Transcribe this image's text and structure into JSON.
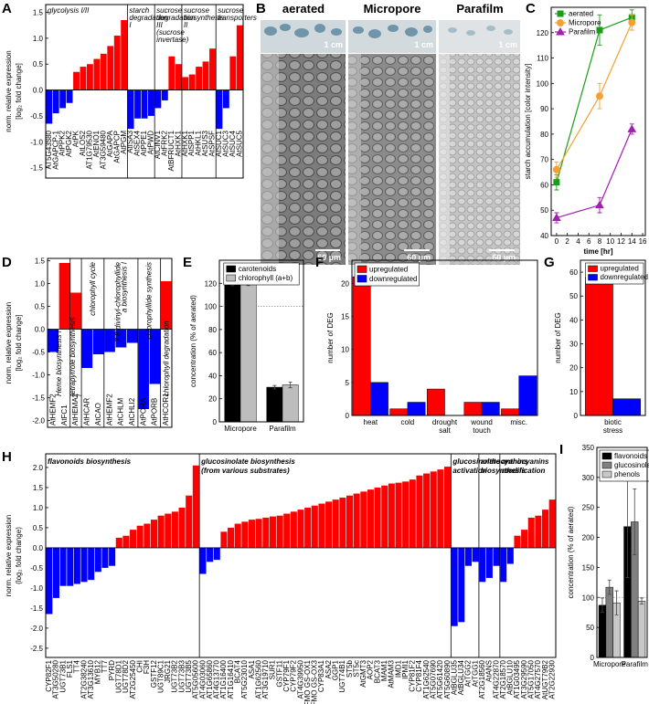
{
  "micrographs": {
    "panel": "B",
    "titles": [
      "aerated",
      "Micropore",
      "Parafilm"
    ],
    "scale_top": [
      "1 cm",
      "1 cm",
      "1 cm"
    ],
    "scale_bottom": [
      "60 µm",
      "60 µm",
      "60 µm"
    ]
  },
  "chart_data": [
    {
      "type": "bar",
      "panel": "A",
      "y_label": [
        "norm. relative expression",
        "[log₂ fold change]"
      ],
      "ylim": [
        -1.7,
        1.65
      ],
      "yticks": [
        -1.5,
        {
          "value": -1,
          "label": "-1.0"
        },
        -0.5,
        {
          "value": 0,
          "label": "0.0"
        },
        0.5,
        {
          "value": 1,
          "label": "1.0"
        },
        1.5
      ],
      "colors": {
        "up": "#ff0000",
        "down": "#0000ff"
      },
      "groups": [
        {
          "label": "glycolysis I/II",
          "categories": [
            "AT5G43380",
            "AtGAPCP-1",
            "AtPPK2",
            "AtPGK2",
            "AtPK",
            "AtLOS2",
            "AT1G79530",
            "AtENO1",
            "AT3G59480",
            "AtGAPA",
            "AtGAPCP",
            "AtPGM"
          ],
          "values": [
            -0.65,
            -0.45,
            -0.35,
            -0.25,
            0.35,
            0.45,
            0.5,
            0.6,
            0.7,
            0.85,
            1.05,
            1.35
          ]
        },
        {
          "label": "starch degradation I",
          "categories": [
            "AtISA3",
            "AtSEX4",
            "AtPPE1",
            "AtPWD"
          ],
          "values": [
            -0.75,
            -0.55,
            -0.55,
            -0.5
          ]
        },
        {
          "label": "sucrose degradation III",
          "sublabel": "(sucrose invertase)",
          "categories": [
            "AtCINV1",
            "AtFRK2",
            "AtBFRUCT1",
            "AtHXK1"
          ],
          "values": [
            -0.35,
            -0.2,
            0.65,
            0.5
          ]
        },
        {
          "label": "sucrose biosynthesis II",
          "categories": [
            "AtHXK1",
            "AtSPP1",
            "AtHKL1",
            "AtSUS3",
            "AtSPSF"
          ],
          "values": [
            0.25,
            0.3,
            0.45,
            0.55,
            0.8
          ]
        },
        {
          "label": "sucrose transporters",
          "categories": [
            "AtSUC1",
            "AtSUC3",
            "AtSUC4",
            "AtSUC5"
          ],
          "values": [
            -0.75,
            -0.35,
            0.65,
            1.25
          ]
        }
      ]
    },
    {
      "type": "line",
      "panel": "C",
      "x_label": "time [hr]",
      "y_label": "starch accumulation [color intensity]",
      "xlim": [
        -1,
        16.5
      ],
      "xticks": [
        0,
        2,
        4,
        6,
        8,
        10,
        12,
        14,
        16
      ],
      "ylim": [
        40,
        130
      ],
      "yticks": [
        40,
        50,
        60,
        70,
        80,
        90,
        100,
        110,
        120
      ],
      "x": [
        0,
        8,
        14
      ],
      "legend": "top-left",
      "series": [
        {
          "name": "aerated",
          "color": "#1a9e1a",
          "marker": "square",
          "values": [
            61,
            121,
            126
          ],
          "errors": [
            3,
            6,
            3
          ]
        },
        {
          "name": "Micropore",
          "color": "#f5a031",
          "marker": "circle",
          "values": [
            66,
            95,
            124
          ],
          "errors": [
            3,
            5,
            3
          ]
        },
        {
          "name": "Parafilm",
          "color": "#a020b0",
          "marker": "triangle",
          "values": [
            47,
            52,
            82
          ],
          "errors": [
            2,
            3,
            2
          ]
        }
      ]
    },
    {
      "type": "bar",
      "panel": "D",
      "y_label": [
        "norm. relative expression",
        "[log₂ fold change]"
      ],
      "ylim": [
        -2.15,
        1.55
      ],
      "yticks": [
        {
          "value": -2,
          "label": "-2.0"
        },
        -1.5,
        {
          "value": -1,
          "label": "-1.0"
        },
        -0.5,
        {
          "value": 0,
          "label": "0.0"
        },
        0.5,
        {
          "value": 1,
          "label": "1.0"
        },
        1.5
      ],
      "colors": {
        "up": "#ff0000",
        "down": "#0000ff"
      },
      "groups": [
        {
          "label": "Heme biosynthesis I",
          "categories": [
            "AtHEMF2",
            "AtFC1"
          ],
          "values": [
            -0.5,
            1.45
          ]
        },
        {
          "label": "tetrapyrrole biosynthesis I",
          "categories": [
            "AtHEMA2"
          ],
          "values": [
            0.8
          ]
        },
        {
          "label": "chlorophyll cycle",
          "categories": [
            "AtHCAR",
            "AtCAO"
          ],
          "values": [
            -0.85,
            -0.55
          ]
        },
        {
          "label": "3,8-divinyl-chlorophyllide a biosynthesis I",
          "categories": [
            "AtHEMF2",
            "AtCHLM",
            "AtCHLI2"
          ],
          "values": [
            -0.5,
            -0.4,
            -0.3
          ]
        },
        {
          "label": "chlorophyllide synthesis",
          "categories": [
            "AtPORA",
            "AtPORB"
          ],
          "values": [
            -1.75,
            -1.2
          ]
        },
        {
          "label": "chlorophyll degradation",
          "categories": [
            "AtHCOR1"
          ],
          "values": [
            1.05
          ]
        }
      ]
    },
    {
      "type": "bar",
      "panel": "E",
      "y_label": "concentration (% of aerated)",
      "categories": [
        "Micropore",
        "Parafilm"
      ],
      "ylim": [
        0,
        140
      ],
      "yticks": [
        0,
        20,
        40,
        60,
        80,
        100,
        120
      ],
      "reference_line": 100,
      "legend": "top",
      "series": [
        {
          "name": "carotenoids",
          "color": "#000000",
          "values": [
            119,
            30
          ],
          "errors": [
            1,
            1.5
          ]
        },
        {
          "name": "chlorophyll (a+b)",
          "color": "#bdbdbd",
          "values": [
            121,
            32
          ],
          "errors": [
            3,
            2.5
          ]
        }
      ]
    },
    {
      "type": "bar",
      "panel": "F",
      "y_label": "number of DEG",
      "categories": [
        "heat",
        "cold",
        "drought salt",
        "wound touch",
        "misc."
      ],
      "ylim": [
        0,
        23.5
      ],
      "yticks": [
        0,
        5,
        10,
        15,
        20
      ],
      "legend": "top-left",
      "series": [
        {
          "name": "upregulated",
          "color": "#ff0000",
          "values": [
            21,
            1,
            4,
            2,
            1
          ]
        },
        {
          "name": "downregulated",
          "color": "#0000ff",
          "values": [
            5,
            2,
            0,
            2,
            6
          ]
        }
      ]
    },
    {
      "type": "bar",
      "panel": "G",
      "y_label": "number of DEG",
      "categories": [
        "biotic stress"
      ],
      "ylim": [
        0,
        65
      ],
      "yticks": [
        0,
        10,
        20,
        30,
        40,
        50,
        60
      ],
      "legend": "top-right",
      "series": [
        {
          "name": "upregulated",
          "color": "#ff0000",
          "values": [
            58
          ]
        },
        {
          "name": "downregulated",
          "color": "#0000ff",
          "values": [
            7
          ]
        }
      ]
    },
    {
      "type": "bar",
      "panel": "H",
      "y_label": [
        "norm. relative expression",
        "(log₂ fold change)"
      ],
      "ylim": [
        -2.73,
        2.34
      ],
      "yticks": [
        -2.5,
        {
          "value": -2,
          "label": "-2.0"
        },
        -1.5,
        {
          "value": -1,
          "label": "-1.0"
        },
        -0.5,
        {
          "value": 0,
          "label": "0.0"
        },
        0.5,
        {
          "value": 1,
          "label": "1.0"
        },
        1.5,
        {
          "value": 2,
          "label": "2.0"
        }
      ],
      "colors": {
        "up": "#ff0000",
        "down": "#0000ff"
      },
      "groups": [
        {
          "label": "flavonoids biosynthesis",
          "categories": [
            "CYP82F1",
            "AT3G50280",
            "UGT73B1",
            "FLS1",
            "TT4",
            "AT2G38240",
            "AT3G13610",
            "MYB12",
            "TT7",
            "PYRD",
            "UGT78D1",
            "UGT78D2",
            "AT2G25450",
            "CHI",
            "F3H",
            "GSTF12",
            "UGT89C1",
            "JRG21",
            "UGT73B2",
            "UGT73B3",
            "UGT73B5",
            "AT5G05600"
          ],
          "values": [
            -1.65,
            -1.25,
            -0.95,
            -0.95,
            -0.9,
            -0.85,
            -0.8,
            -0.6,
            -0.5,
            -0.45,
            0.25,
            0.3,
            0.45,
            0.55,
            0.6,
            0.7,
            0.8,
            0.85,
            0.9,
            1.0,
            1.3,
            2.05
          ]
        },
        {
          "label": "glucosinolate biosynthesis",
          "sublabel": "(from various substrates)",
          "categories": [
            "AT4G03060",
            "AT1G65860",
            "AT4G13770",
            "AT1G16400",
            "AT1G16410",
            "BCAT4",
            "AT5G23010",
            "ASA1",
            "AT1G62560",
            "AT3G19710",
            "SUR1",
            "GSTF11",
            "CYP79F1",
            "CYP79F2",
            "AT4G39950",
            "AtFMO GS-OX1",
            "AtFMO GS-OX3",
            "CYP83A1",
            "ASA2",
            "GGP1",
            "UGT74B1",
            "ST5b",
            "ST5c",
            "AtGMT3",
            "AOP2",
            "BCAT3",
            "MAM1",
            "AtMAM3",
            "IMD1",
            "IPMI1",
            "CYP81F2",
            "CYP81F4",
            "AT1G62540",
            "AT5G07690",
            "AT5G61420",
            "AT5G60890"
          ],
          "values": [
            -0.65,
            -0.35,
            -0.3,
            0.4,
            0.5,
            0.6,
            0.65,
            0.7,
            0.72,
            0.75,
            0.78,
            0.8,
            0.85,
            0.9,
            0.95,
            1.0,
            1.05,
            1.1,
            1.15,
            1.2,
            1.25,
            1.3,
            1.35,
            1.4,
            1.45,
            1.5,
            1.55,
            1.6,
            1.62,
            1.65,
            1.7,
            1.8,
            1.85,
            1.9,
            1.95,
            2.02
          ]
        },
        {
          "label": "glucosinolate activation",
          "categories": [
            "AtBGLU35",
            "AtBGLU34",
            "AtTGG2",
            "AtTGG1"
          ],
          "values": [
            -1.95,
            -1.85,
            -0.45,
            -0.35
          ]
        },
        {
          "label": "anthocyanins biosynthesis",
          "categories": [
            "AT2G18560",
            "AtANS",
            "AT4G22870"
          ],
          "values": [
            -0.85,
            -0.75,
            -0.45
          ]
        },
        {
          "label": "anthocyanins modification",
          "categories": [
            "AT2G18570",
            "AtBGLU10",
            "AT1G03495",
            "AT3G29590",
            "AT5G17050",
            "AT4G27570",
            "AtUGT79B2",
            "AT2G22930"
          ],
          "values": [
            -0.85,
            -0.4,
            0.3,
            0.45,
            0.75,
            0.8,
            0.95,
            1.2
          ]
        }
      ]
    },
    {
      "type": "bar",
      "panel": "I",
      "y_label": "concentration (% of aerated)",
      "categories": [
        "Micropore",
        "Parafilm"
      ],
      "ylim": [
        0,
        350
      ],
      "yticks": [
        0,
        50,
        100,
        150,
        200,
        250,
        300,
        350
      ],
      "reference_line": 100,
      "legend": "top-left",
      "series": [
        {
          "name": "flavonoids",
          "color": "#000000",
          "values": [
            87,
            218
          ],
          "errors": [
            12,
            85
          ]
        },
        {
          "name": "glucosinolates",
          "color": "#808080",
          "values": [
            117,
            226
          ],
          "errors": [
            12,
            55
          ]
        },
        {
          "name": "phenols",
          "color": "#c8c8c8",
          "values": [
            91,
            94
          ],
          "errors": [
            20,
            5
          ]
        }
      ]
    }
  ]
}
